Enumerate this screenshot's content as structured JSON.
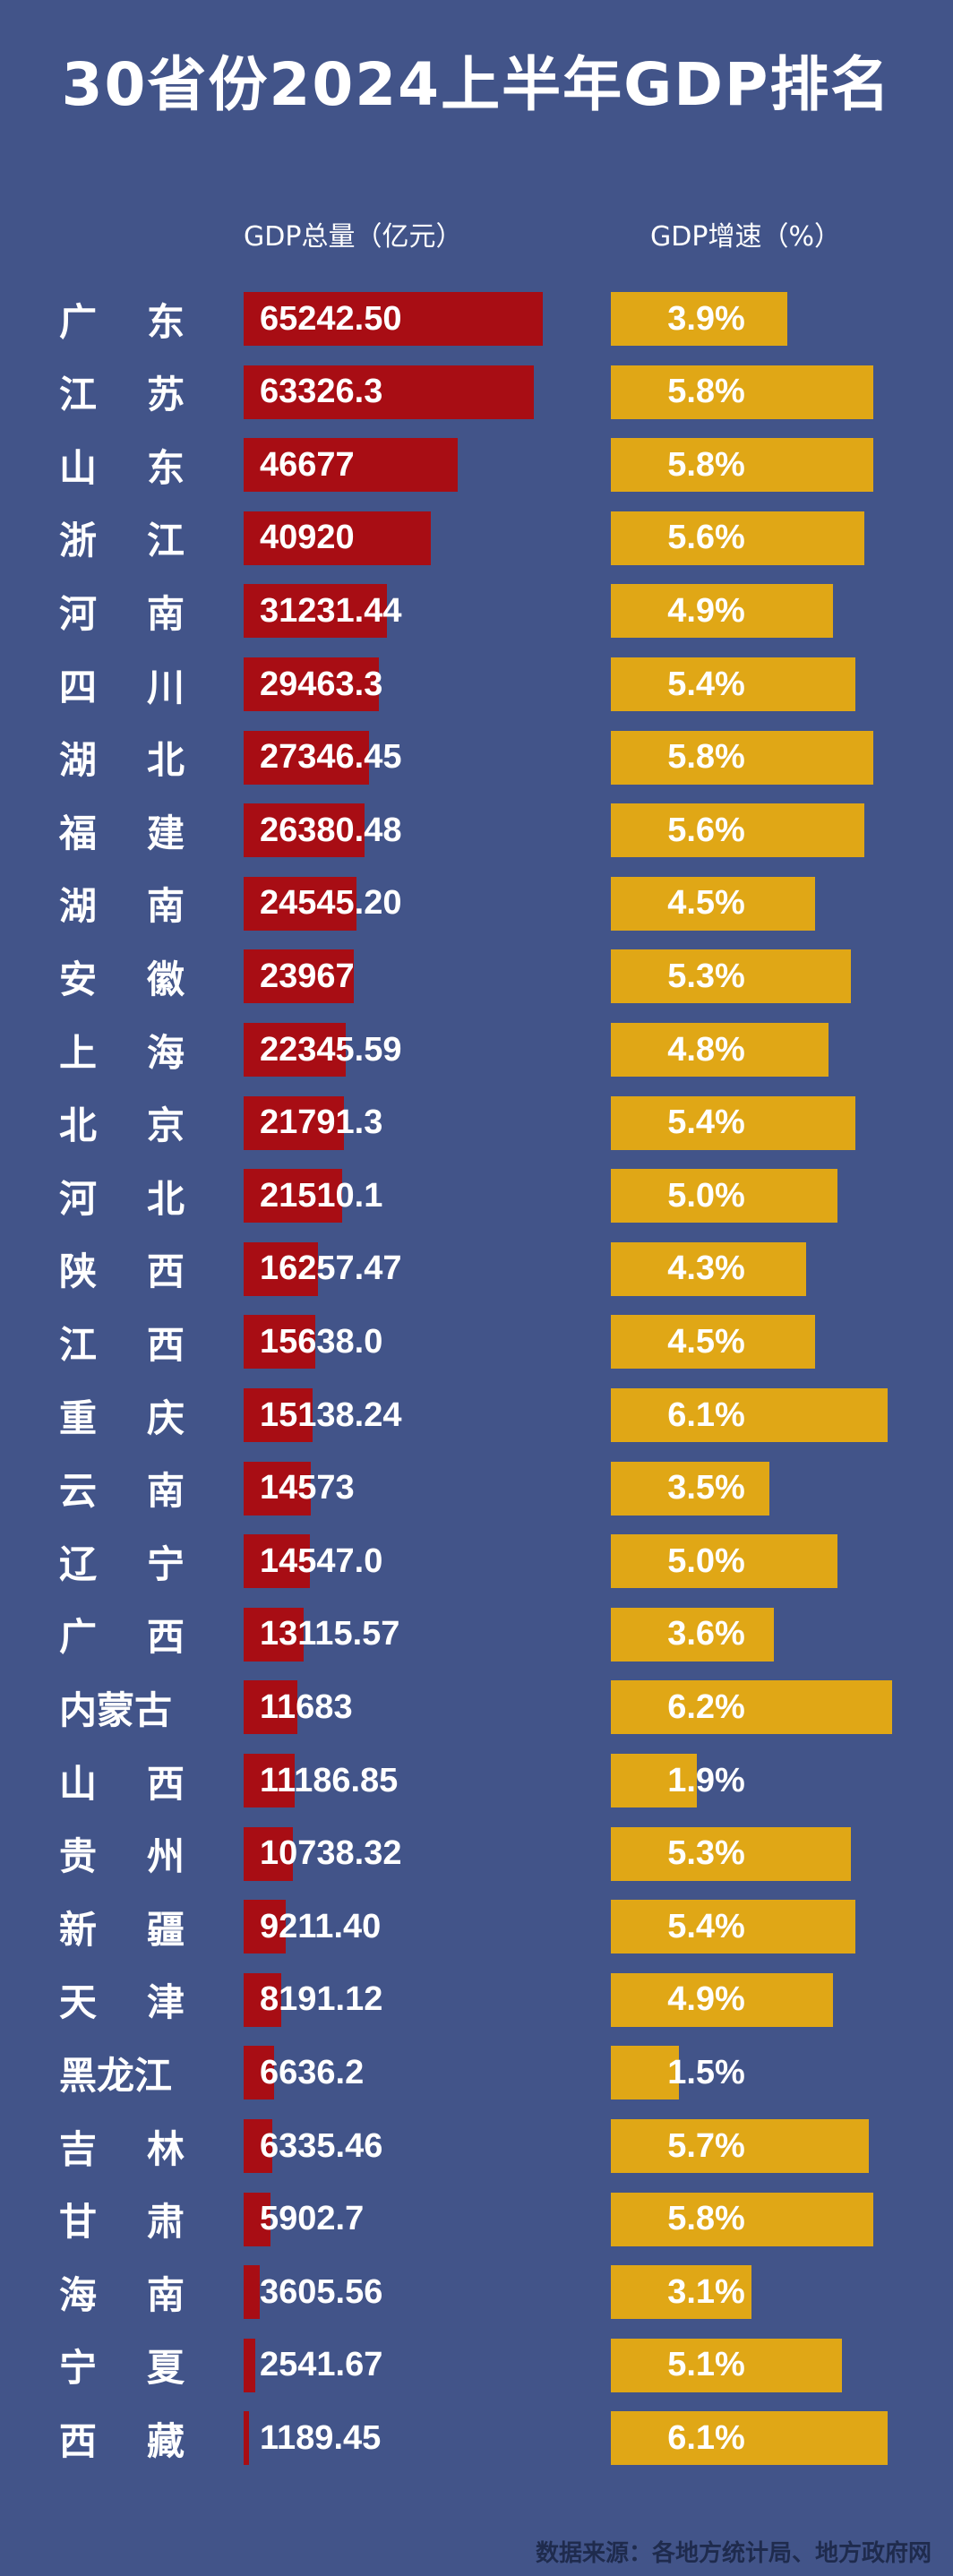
{
  "title": "30省份2024上半年GDP排名",
  "source": "数据来源：各地方统计局、地方政府网",
  "colors": {
    "background": "#425489",
    "gdp_bar": "#a80d14",
    "growth_bar": "#e0a716"
  },
  "chart_data": {
    "type": "bar",
    "title": "30省份2024上半年GDP排名",
    "orientation": "horizontal",
    "columns": [
      "GDP总量（亿元）",
      "GDP增速（%）"
    ],
    "categories": [
      "广东",
      "江苏",
      "山东",
      "浙江",
      "河南",
      "四川",
      "湖北",
      "福建",
      "湖南",
      "安徽",
      "上海",
      "北京",
      "河北",
      "陕西",
      "江西",
      "重庆",
      "云南",
      "辽宁",
      "广西",
      "内蒙古",
      "山西",
      "贵州",
      "新疆",
      "天津",
      "黑龙江",
      "吉林",
      "甘肃",
      "海南",
      "宁夏",
      "西藏"
    ],
    "series": [
      {
        "name": "GDP总量（亿元）",
        "values": [
          65242.5,
          63326.3,
          46677,
          40920,
          31231.44,
          29463.3,
          27346.45,
          26380.48,
          24545.2,
          23967,
          22345.59,
          21791.3,
          21510.1,
          16257.47,
          15638.0,
          15138.24,
          14573,
          14547.0,
          13115.57,
          11683,
          11186.85,
          10738.32,
          9211.4,
          8191.12,
          6636.2,
          6335.46,
          5902.7,
          3605.56,
          2541.67,
          1189.45
        ],
        "labels": [
          "65242.50",
          "63326.3",
          "46677",
          "40920",
          "31231.44",
          "29463.3",
          "27346.45",
          "26380.48",
          "24545.20",
          "23967",
          "22345.59",
          "21791.3",
          "21510.1",
          "16257.47",
          "15638.0",
          "15138.24",
          "14573",
          "14547.0",
          "13115.57",
          "11683",
          "11186.85",
          "10738.32",
          "9211.40",
          "8191.12",
          "6636.2",
          "6335.46",
          "5902.7",
          "3605.56",
          "2541.67",
          "1189.45"
        ]
      },
      {
        "name": "GDP增速（%）",
        "values": [
          3.9,
          5.8,
          5.8,
          5.6,
          4.9,
          5.4,
          5.8,
          5.6,
          4.5,
          5.3,
          4.8,
          5.4,
          5.0,
          4.3,
          4.5,
          6.1,
          3.5,
          5.0,
          3.6,
          6.2,
          1.9,
          5.3,
          5.4,
          4.9,
          1.5,
          5.7,
          5.8,
          3.1,
          5.1,
          6.1
        ],
        "labels": [
          "3.9%",
          "5.8%",
          "5.8%",
          "5.6%",
          "4.9%",
          "5.4%",
          "5.8%",
          "5.6%",
          "4.5%",
          "5.3%",
          "4.8%",
          "5.4%",
          "5.0%",
          "4.3%",
          "4.5%",
          "6.1%",
          "3.5%",
          "5.0%",
          "3.6%",
          "6.2%",
          "1.9%",
          "5.3%",
          "5.4%",
          "4.9%",
          "1.5%",
          "5.7%",
          "5.8%",
          "3.1%",
          "5.1%",
          "6.1%"
        ]
      }
    ]
  }
}
